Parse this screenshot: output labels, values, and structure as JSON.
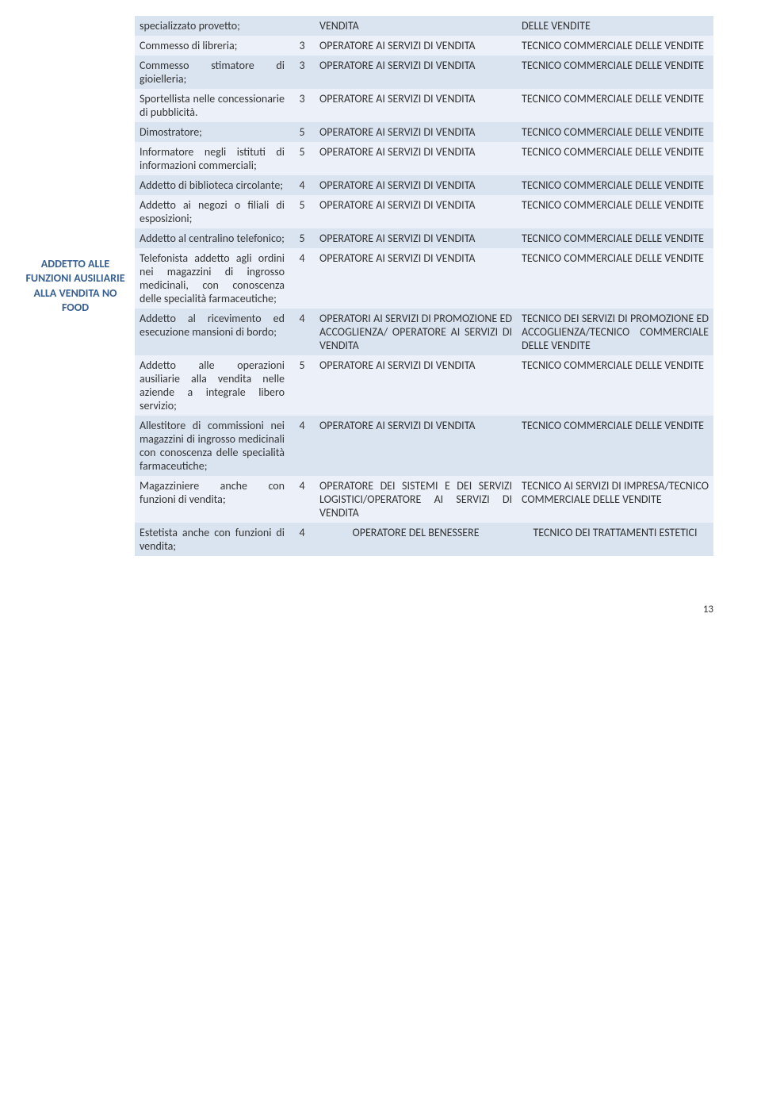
{
  "sidebar_label": "ADDETTO ALLE FUNZIONI AUSILIARIE ALLA VENDITA NO FOOD",
  "page_number": "13",
  "altColors": [
    "#dae4f0",
    "#ecf0f8"
  ],
  "rows": [
    {
      "c1": "specializzato provetto;",
      "c2": "",
      "c3": "VENDITA",
      "c4": "DELLE VENDITE"
    },
    {
      "c1": "Commesso di libreria;",
      "c2": "3",
      "c3": "OPERATORE AI SERVIZI DI VENDITA",
      "c4": "TECNICO COMMERCIALE DELLE VENDITE"
    },
    {
      "c1": "Commesso stimatore di gioielleria;",
      "c2": "3",
      "c3": "OPERATORE AI SERVIZI DI VENDITA",
      "c4": "TECNICO COMMERCIALE DELLE VENDITE"
    },
    {
      "c1": "Sportellista nelle concessionarie di pubblicità.",
      "c2": "3",
      "c3": "OPERATORE AI SERVIZI DI VENDITA",
      "c4": "TECNICO COMMERCIALE DELLE VENDITE"
    },
    {
      "c1": "Dimostratore;",
      "c2": "5",
      "c3": "OPERATORE AI SERVIZI DI VENDITA",
      "c4": "TECNICO COMMERCIALE DELLE VENDITE"
    },
    {
      "c1": "Informatore negli istituti di informazioni commerciali;",
      "c2": "5",
      "c3": "OPERATORE AI SERVIZI DI VENDITA",
      "c4": "TECNICO COMMERCIALE DELLE VENDITE"
    },
    {
      "c1": "Addetto di biblioteca circolante;",
      "c2": "4",
      "c3": "OPERATORE AI SERVIZI DI VENDITA",
      "c4": "TECNICO COMMERCIALE DELLE VENDITE"
    },
    {
      "c1": "Addetto ai negozi o filiali di esposizioni;",
      "c2": "5",
      "c3": "OPERATORE AI SERVIZI DI VENDITA",
      "c4": "TECNICO COMMERCIALE DELLE VENDITE"
    },
    {
      "c1": "Addetto al centralino telefonico;",
      "c2": "5",
      "c3": "OPERATORE AI SERVIZI DI VENDITA",
      "c4": "TECNICO COMMERCIALE DELLE VENDITE"
    },
    {
      "c1": "Telefonista addetto agli ordini nei magazzini di ingrosso medicinali, con conoscenza delle specialità farmaceutiche;",
      "c2": "4",
      "c3": "OPERATORE AI SERVIZI DI VENDITA",
      "c4": "TECNICO COMMERCIALE DELLE VENDITE"
    },
    {
      "c1": "Addetto al ricevimento ed esecuzione mansioni di bordo;",
      "c2": "4",
      "c3": "OPERATORI AI SERVIZI DI PROMOZIONE ED ACCOGLIENZA/ OPERATORE AI SERVIZI DI VENDITA",
      "c4": "TECNICO DEI SERVIZI DI PROMOZIONE ED ACCOGLIENZA/TECNICO COMMERCIALE DELLE VENDITE"
    },
    {
      "c1": "Addetto alle operazioni ausiliarie alla vendita nelle aziende a integrale libero servizio;",
      "c2": "5",
      "c3": "OPERATORE AI SERVIZI DI VENDITA",
      "c4": "TECNICO COMMERCIALE DELLE VENDITE"
    },
    {
      "c1": "Allestitore di commissioni nei magazzini di ingrosso medicinali con conoscenza delle specialità farmaceutiche;",
      "c2": "4",
      "c3": "OPERATORE AI SERVIZI DI VENDITA",
      "c4": "TECNICO COMMERCIALE DELLE VENDITE"
    },
    {
      "c1": "Magazziniere anche con funzioni di vendita;",
      "c2": "4",
      "c3": "OPERATORE DEI SISTEMI E DEI SERVIZI LOGISTICI/OPERATORE AI SERVIZI DI VENDITA",
      "c4": "TECNICO AI SERVIZI DI IMPRESA/TECNICO COMMERCIALE DELLE VENDITE"
    },
    {
      "c1": "Estetista anche con funzioni di vendita;",
      "c2": "4",
      "c3": "OPERATORE DEL BENESSERE",
      "c4": "TECNICO DEI TRATTAMENTI ESTETICI",
      "c3_align": "center",
      "c4_align": "center"
    }
  ]
}
